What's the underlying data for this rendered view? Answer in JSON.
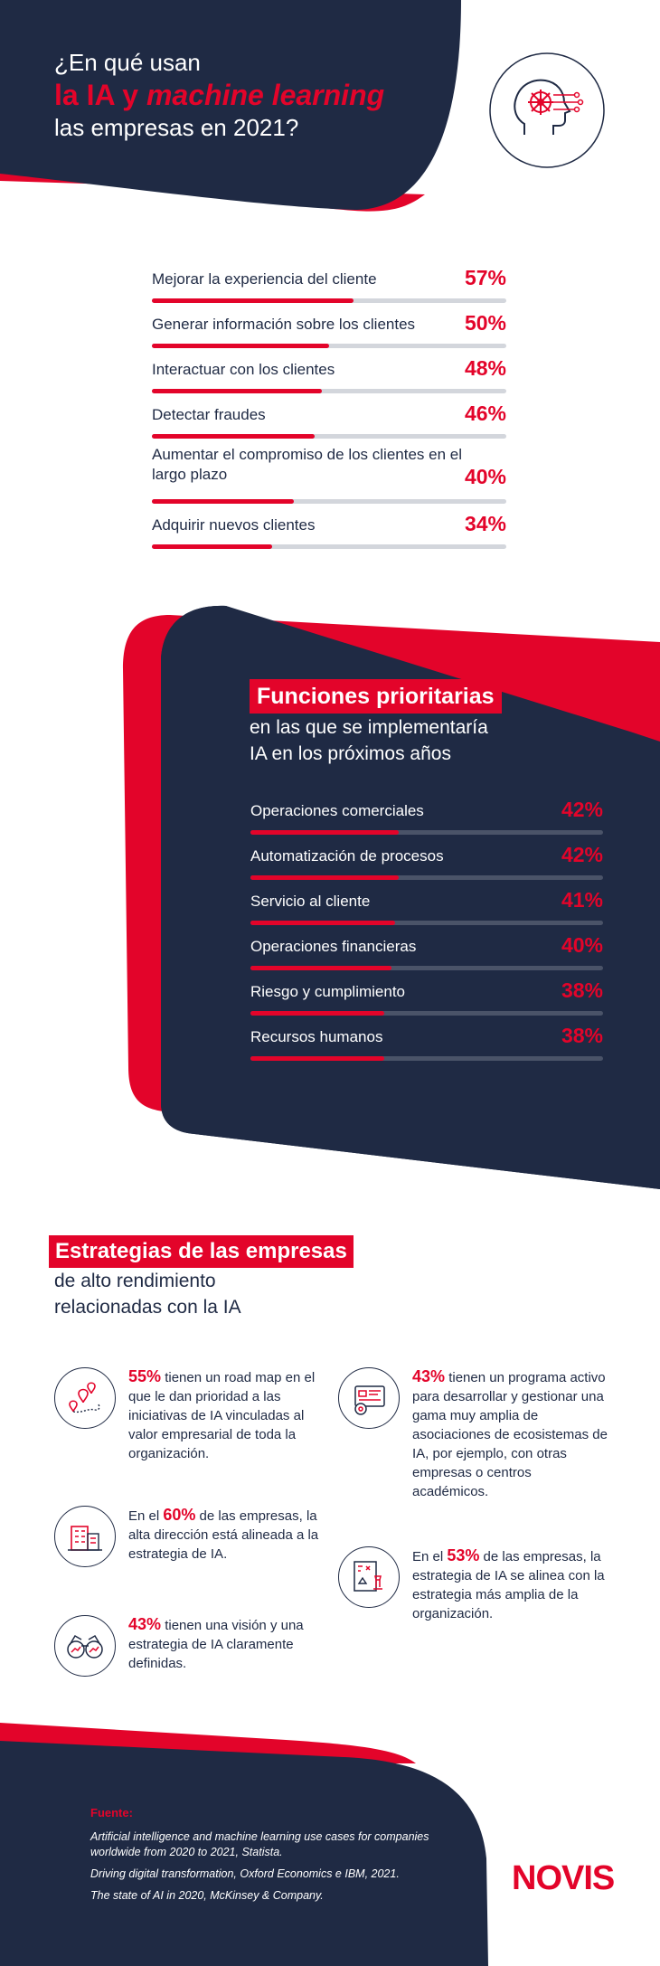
{
  "header": {
    "line1": "¿En qué usan",
    "line2a": "la IA y ",
    "line2b": "machine learning",
    "line3": "las empresas en 2021?",
    "icon": "ai-head-icon"
  },
  "chart_data": [
    {
      "type": "bar",
      "categories": [
        "Mejorar la experiencia del cliente",
        "Generar información sobre los clientes",
        "Interactuar con los clientes",
        "Detectar fraudes",
        "Aumentar el compromiso de los clientes en el largo plazo",
        "Adquirir nuevos clientes"
      ],
      "values": [
        57,
        50,
        48,
        46,
        40,
        34
      ],
      "labels": [
        "57%",
        "50%",
        "48%",
        "46%",
        "40%",
        "34%"
      ],
      "ylim": [
        0,
        100
      ]
    },
    {
      "type": "bar",
      "title": "Funciones prioritarias",
      "subtitle": "en las que se implementaría IA en los próximos años",
      "categories": [
        "Operaciones comerciales",
        "Automatización de procesos",
        "Servicio al cliente",
        "Operaciones financieras",
        "Riesgo y cumplimiento",
        "Recursos humanos"
      ],
      "values": [
        42,
        42,
        41,
        40,
        38,
        38
      ],
      "labels": [
        "42%",
        "42%",
        "41%",
        "40%",
        "38%",
        "38%"
      ],
      "ylim": [
        0,
        100
      ]
    }
  ],
  "section2": {
    "title": "Funciones prioritarias",
    "sub1": "en las que se implementaría",
    "sub2": "IA en los próximos años"
  },
  "section3": {
    "title": "Estrategias de las empresas",
    "sub1": "de alto rendimiento",
    "sub2": "relacionadas con la IA",
    "items": [
      {
        "icon": "map-pins-icon",
        "pre": "",
        "pct": "55%",
        "text": " tienen un road map en el que le dan prioridad a las iniciativas de IA vinculadas al valor empresarial de toda la organización."
      },
      {
        "icon": "office-building-icon",
        "pre": "En el ",
        "pct": "60%",
        "text": " de las empresas, la alta dirección está alineada a la estrategia de IA."
      },
      {
        "icon": "binoculars-icon",
        "pre": "",
        "pct": "43%",
        "text": " tienen una visión y una estrategia de IA claramente definidas."
      },
      {
        "icon": "dashboard-gear-icon",
        "pre": "",
        "pct": "43%",
        "text": " tienen un programa activo para desarrollar y gestionar una gama muy amplia de asociaciones de ecosistemas de IA, por ejemplo, con otras empresas o centros académicos."
      },
      {
        "icon": "strategy-chess-icon",
        "pre": "En el ",
        "pct": "53%",
        "text": " de las empresas, la estrategia de IA se alinea con la estrategia más amplia de la organización."
      }
    ]
  },
  "footer": {
    "head": "Fuente:",
    "src1": "Artificial intelligence and machine learning use cases for companies worldwide from 2020 to 2021, Statista.",
    "src2": "Driving digital transformation, Oxford Economics e IBM, 2021.",
    "src3": "The state of AI in 2020, McKinsey & Company.",
    "logo": "NOVIS"
  },
  "colors": {
    "navy": "#1f2a44",
    "red": "#e3042a",
    "track": "#d3d6dc"
  }
}
